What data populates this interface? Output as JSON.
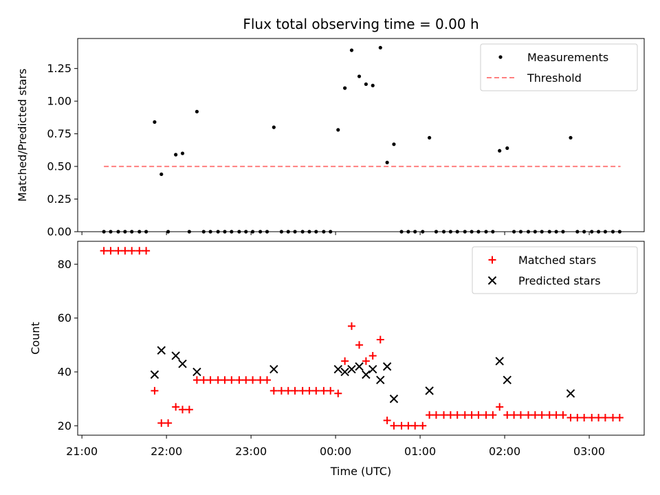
{
  "chart_data": {
    "type": "scatter",
    "title": "Flux total observing time = 0.00 h",
    "xlabel": "Time (UTC)",
    "x_tick_labels": [
      "21:00",
      "22:00",
      "23:00",
      "00:00",
      "01:00",
      "02:00",
      "03:00"
    ],
    "x_tick_hours": [
      0,
      1,
      2,
      3,
      4,
      5,
      6
    ],
    "x_hours_origin": "21:00",
    "xlim_hours": [
      -0.05,
      6.65
    ],
    "colors": {
      "measurement": "#000000",
      "threshold": "#ff7f7f",
      "matched": "#ff0000",
      "predicted": "#000000"
    },
    "panels": [
      {
        "id": "ratio",
        "ylabel": "Matched/Predicted stars",
        "ylim": [
          0,
          1.48
        ],
        "y_ticks": [
          0,
          0.25,
          0.5,
          0.75,
          1.0,
          1.25
        ],
        "y_tick_labels": [
          "0.00",
          "0.25",
          "0.50",
          "0.75",
          "1.00",
          "1.25"
        ],
        "legend": {
          "position": "upper right",
          "entries": [
            "Measurements",
            "Threshold"
          ]
        },
        "threshold": {
          "name": "Threshold",
          "value": 0.5,
          "x_range_hours": [
            0.26,
            6.37
          ]
        },
        "series": [
          {
            "name": "Measurements",
            "marker": "dot",
            "points": [
              [
                0.26,
                0
              ],
              [
                0.34,
                0
              ],
              [
                0.43,
                0
              ],
              [
                0.51,
                0
              ],
              [
                0.59,
                0
              ],
              [
                0.68,
                0
              ],
              [
                0.76,
                0
              ],
              [
                0.86,
                0.84
              ],
              [
                0.94,
                0.44
              ],
              [
                1.02,
                0
              ],
              [
                1.11,
                0.59
              ],
              [
                1.19,
                0.6
              ],
              [
                1.27,
                0
              ],
              [
                1.36,
                0.92
              ],
              [
                1.44,
                0
              ],
              [
                1.52,
                0
              ],
              [
                1.61,
                0
              ],
              [
                1.69,
                0
              ],
              [
                1.77,
                0
              ],
              [
                1.86,
                0
              ],
              [
                1.94,
                0
              ],
              [
                2.02,
                0
              ],
              [
                2.11,
                0
              ],
              [
                2.19,
                0
              ],
              [
                2.27,
                0.8
              ],
              [
                2.36,
                0
              ],
              [
                2.44,
                0
              ],
              [
                2.52,
                0
              ],
              [
                2.61,
                0
              ],
              [
                2.69,
                0
              ],
              [
                2.77,
                0
              ],
              [
                2.86,
                0
              ],
              [
                2.94,
                0
              ],
              [
                3.03,
                0.78
              ],
              [
                3.11,
                1.1
              ],
              [
                3.19,
                1.39
              ],
              [
                3.28,
                1.19
              ],
              [
                3.36,
                1.13
              ],
              [
                3.44,
                1.12
              ],
              [
                3.53,
                1.41
              ],
              [
                3.61,
                0.53
              ],
              [
                3.69,
                0.67
              ],
              [
                3.78,
                0
              ],
              [
                3.86,
                0
              ],
              [
                3.94,
                0
              ],
              [
                4.03,
                0
              ],
              [
                4.11,
                0.72
              ],
              [
                4.19,
                0
              ],
              [
                4.28,
                0
              ],
              [
                4.36,
                0
              ],
              [
                4.44,
                0
              ],
              [
                4.53,
                0
              ],
              [
                4.61,
                0
              ],
              [
                4.69,
                0
              ],
              [
                4.78,
                0
              ],
              [
                4.86,
                0
              ],
              [
                4.94,
                0.62
              ],
              [
                5.03,
                0.64
              ],
              [
                5.11,
                0
              ],
              [
                5.19,
                0
              ],
              [
                5.28,
                0
              ],
              [
                5.36,
                0
              ],
              [
                5.44,
                0
              ],
              [
                5.53,
                0
              ],
              [
                5.61,
                0
              ],
              [
                5.69,
                0
              ],
              [
                5.78,
                0.72
              ],
              [
                5.86,
                0
              ],
              [
                5.94,
                0
              ],
              [
                6.03,
                0
              ],
              [
                6.11,
                0
              ],
              [
                6.19,
                0
              ],
              [
                6.28,
                0
              ],
              [
                6.36,
                0
              ]
            ]
          }
        ]
      },
      {
        "id": "counts",
        "ylabel": "Count",
        "ylim": [
          16.5,
          88.5
        ],
        "y_ticks": [
          20,
          40,
          60,
          80
        ],
        "y_tick_labels": [
          "20",
          "40",
          "60",
          "80"
        ],
        "legend": {
          "position": "upper right",
          "entries": [
            "Matched stars",
            "Predicted stars"
          ]
        },
        "series": [
          {
            "name": "Matched stars",
            "marker": "plus",
            "points": [
              [
                0.26,
                85
              ],
              [
                0.34,
                85
              ],
              [
                0.43,
                85
              ],
              [
                0.51,
                85
              ],
              [
                0.59,
                85
              ],
              [
                0.68,
                85
              ],
              [
                0.76,
                85
              ],
              [
                0.86,
                33
              ],
              [
                0.94,
                21
              ],
              [
                1.02,
                21
              ],
              [
                1.11,
                27
              ],
              [
                1.19,
                26
              ],
              [
                1.27,
                26
              ],
              [
                1.36,
                37
              ],
              [
                1.44,
                37
              ],
              [
                1.52,
                37
              ],
              [
                1.61,
                37
              ],
              [
                1.69,
                37
              ],
              [
                1.77,
                37
              ],
              [
                1.86,
                37
              ],
              [
                1.94,
                37
              ],
              [
                2.02,
                37
              ],
              [
                2.11,
                37
              ],
              [
                2.19,
                37
              ],
              [
                2.27,
                33
              ],
              [
                2.36,
                33
              ],
              [
                2.44,
                33
              ],
              [
                2.52,
                33
              ],
              [
                2.61,
                33
              ],
              [
                2.69,
                33
              ],
              [
                2.77,
                33
              ],
              [
                2.86,
                33
              ],
              [
                2.94,
                33
              ],
              [
                3.03,
                32
              ],
              [
                3.11,
                44
              ],
              [
                3.19,
                57
              ],
              [
                3.28,
                50
              ],
              [
                3.36,
                44
              ],
              [
                3.44,
                46
              ],
              [
                3.53,
                52
              ],
              [
                3.61,
                22
              ],
              [
                3.69,
                20
              ],
              [
                3.78,
                20
              ],
              [
                3.86,
                20
              ],
              [
                3.94,
                20
              ],
              [
                4.03,
                20
              ],
              [
                4.11,
                24
              ],
              [
                4.19,
                24
              ],
              [
                4.28,
                24
              ],
              [
                4.36,
                24
              ],
              [
                4.44,
                24
              ],
              [
                4.53,
                24
              ],
              [
                4.61,
                24
              ],
              [
                4.69,
                24
              ],
              [
                4.78,
                24
              ],
              [
                4.86,
                24
              ],
              [
                4.94,
                27
              ],
              [
                5.03,
                24
              ],
              [
                5.11,
                24
              ],
              [
                5.19,
                24
              ],
              [
                5.28,
                24
              ],
              [
                5.36,
                24
              ],
              [
                5.44,
                24
              ],
              [
                5.53,
                24
              ],
              [
                5.61,
                24
              ],
              [
                5.69,
                24
              ],
              [
                5.78,
                23
              ],
              [
                5.86,
                23
              ],
              [
                5.94,
                23
              ],
              [
                6.03,
                23
              ],
              [
                6.11,
                23
              ],
              [
                6.19,
                23
              ],
              [
                6.28,
                23
              ],
              [
                6.36,
                23
              ]
            ]
          },
          {
            "name": "Predicted stars",
            "marker": "x",
            "points": [
              [
                0.86,
                39
              ],
              [
                0.94,
                48
              ],
              [
                1.11,
                46
              ],
              [
                1.19,
                43
              ],
              [
                1.36,
                40
              ],
              [
                2.27,
                41
              ],
              [
                3.03,
                41
              ],
              [
                3.11,
                40
              ],
              [
                3.19,
                41
              ],
              [
                3.28,
                42
              ],
              [
                3.36,
                39
              ],
              [
                3.44,
                41
              ],
              [
                3.53,
                37
              ],
              [
                3.61,
                42
              ],
              [
                3.69,
                30
              ],
              [
                4.11,
                33
              ],
              [
                4.94,
                44
              ],
              [
                5.03,
                37
              ],
              [
                5.78,
                32
              ]
            ]
          }
        ]
      }
    ]
  }
}
